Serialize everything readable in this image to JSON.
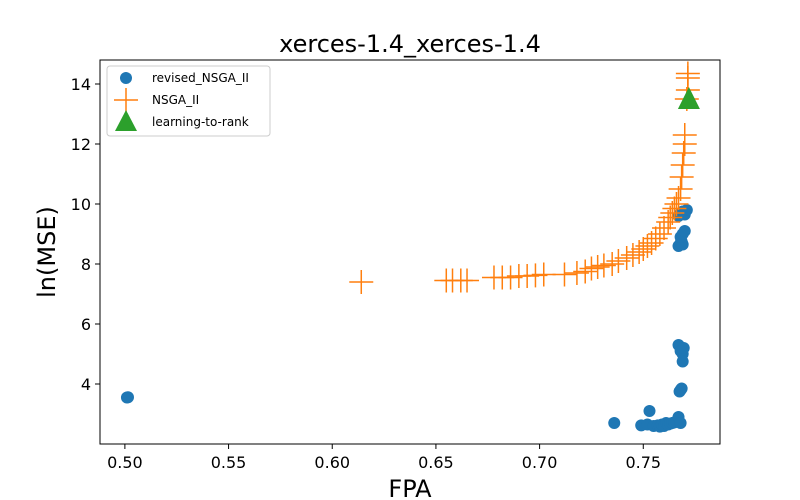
{
  "chart_data": {
    "type": "scatter",
    "title": "xerces-1.4_xerces-1.4",
    "xlabel": "FPA",
    "ylabel": "ln(MSE)",
    "xlim": [
      0.488,
      0.787
    ],
    "ylim": [
      2.0,
      14.8
    ],
    "xticks": [
      0.5,
      0.55,
      0.6,
      0.65,
      0.7,
      0.75
    ],
    "xtick_labels": [
      "0.50",
      "0.55",
      "0.60",
      "0.65",
      "0.70",
      "0.75"
    ],
    "yticks": [
      4,
      6,
      8,
      10,
      12,
      14
    ],
    "ytick_labels": [
      "4",
      "6",
      "8",
      "10",
      "12",
      "14"
    ],
    "grid": false,
    "legend_position": "upper-left",
    "series": [
      {
        "name": "revised_NSGA_II",
        "marker": "circle",
        "color": "#1f77b4",
        "points": [
          [
            0.501,
            3.55
          ],
          [
            0.5015,
            3.56
          ],
          [
            0.736,
            2.7
          ],
          [
            0.749,
            2.62
          ],
          [
            0.752,
            2.65
          ],
          [
            0.753,
            3.1
          ],
          [
            0.755,
            2.6
          ],
          [
            0.757,
            2.62
          ],
          [
            0.758,
            2.58
          ],
          [
            0.759,
            2.65
          ],
          [
            0.76,
            2.6
          ],
          [
            0.761,
            2.7
          ],
          [
            0.762,
            2.65
          ],
          [
            0.763,
            2.68
          ],
          [
            0.764,
            2.7
          ],
          [
            0.765,
            2.72
          ],
          [
            0.766,
            2.75
          ],
          [
            0.767,
            2.9
          ],
          [
            0.768,
            2.7
          ],
          [
            0.7675,
            3.75
          ],
          [
            0.768,
            3.8
          ],
          [
            0.7685,
            3.85
          ],
          [
            0.767,
            5.3
          ],
          [
            0.768,
            5.1
          ],
          [
            0.769,
            5.0
          ],
          [
            0.7695,
            5.2
          ],
          [
            0.769,
            4.75
          ],
          [
            0.767,
            8.6
          ],
          [
            0.768,
            8.7
          ],
          [
            0.7685,
            8.75
          ],
          [
            0.769,
            8.65
          ],
          [
            0.768,
            8.9
          ],
          [
            0.769,
            9.0
          ],
          [
            0.77,
            9.1
          ],
          [
            0.767,
            9.6
          ],
          [
            0.768,
            9.7
          ],
          [
            0.769,
            9.75
          ],
          [
            0.77,
            9.65
          ],
          [
            0.771,
            9.8
          ]
        ]
      },
      {
        "name": "NSGA_II",
        "marker": "plus",
        "color": "#ff7f0e",
        "points": [
          [
            0.614,
            7.4
          ],
          [
            0.655,
            7.45
          ],
          [
            0.658,
            7.45
          ],
          [
            0.662,
            7.45
          ],
          [
            0.665,
            7.45
          ],
          [
            0.678,
            7.55
          ],
          [
            0.682,
            7.55
          ],
          [
            0.686,
            7.55
          ],
          [
            0.69,
            7.6
          ],
          [
            0.694,
            7.6
          ],
          [
            0.698,
            7.62
          ],
          [
            0.702,
            7.65
          ],
          [
            0.712,
            7.65
          ],
          [
            0.718,
            7.7
          ],
          [
            0.722,
            7.75
          ],
          [
            0.725,
            7.85
          ],
          [
            0.728,
            7.9
          ],
          [
            0.731,
            7.95
          ],
          [
            0.735,
            8.0
          ],
          [
            0.738,
            8.1
          ],
          [
            0.742,
            8.2
          ],
          [
            0.745,
            8.3
          ],
          [
            0.748,
            8.4
          ],
          [
            0.75,
            8.5
          ],
          [
            0.752,
            8.6
          ],
          [
            0.754,
            8.7
          ],
          [
            0.756,
            8.85
          ],
          [
            0.758,
            9.0
          ],
          [
            0.76,
            9.2
          ],
          [
            0.762,
            9.4
          ],
          [
            0.763,
            9.55
          ],
          [
            0.764,
            9.7
          ],
          [
            0.765,
            9.85
          ],
          [
            0.766,
            10.0
          ],
          [
            0.767,
            10.2
          ],
          [
            0.768,
            10.5
          ],
          [
            0.7685,
            10.9
          ],
          [
            0.769,
            11.3
          ],
          [
            0.7695,
            11.7
          ],
          [
            0.77,
            12.0
          ],
          [
            0.77,
            12.3
          ],
          [
            0.771,
            13.5
          ],
          [
            0.7715,
            13.8
          ],
          [
            0.7715,
            14.2
          ],
          [
            0.7715,
            14.35
          ]
        ]
      },
      {
        "name": "learning-to-rank",
        "marker": "triangle",
        "color": "#2ca02c",
        "points": [
          [
            0.772,
            13.5
          ]
        ]
      }
    ]
  }
}
